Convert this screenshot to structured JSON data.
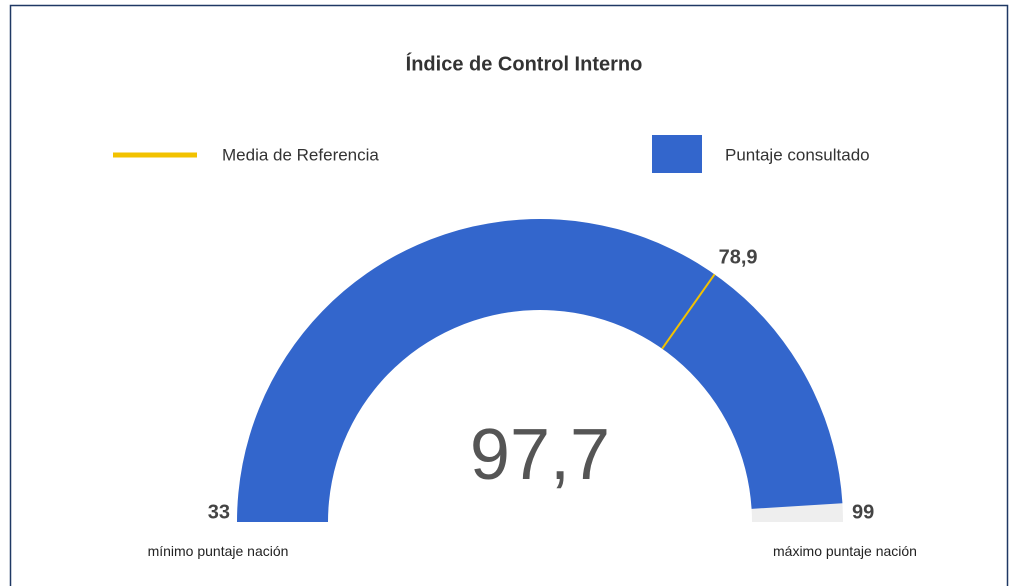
{
  "chart_data": {
    "type": "gauge",
    "title": "Índice de Control Interno",
    "series": [
      {
        "name": "Media de Referencia",
        "color": "#f2c200"
      },
      {
        "name": "Puntaje consultado",
        "color": "#3366cc"
      }
    ],
    "value": 97.7,
    "value_label": "97,7",
    "reference": {
      "value": 78.9,
      "label": "78,9"
    },
    "range": [
      33,
      99
    ],
    "min_label": "mínimo puntaje nación",
    "max_label": "máximo puntaje nación",
    "track_color": "#eeeeee"
  }
}
